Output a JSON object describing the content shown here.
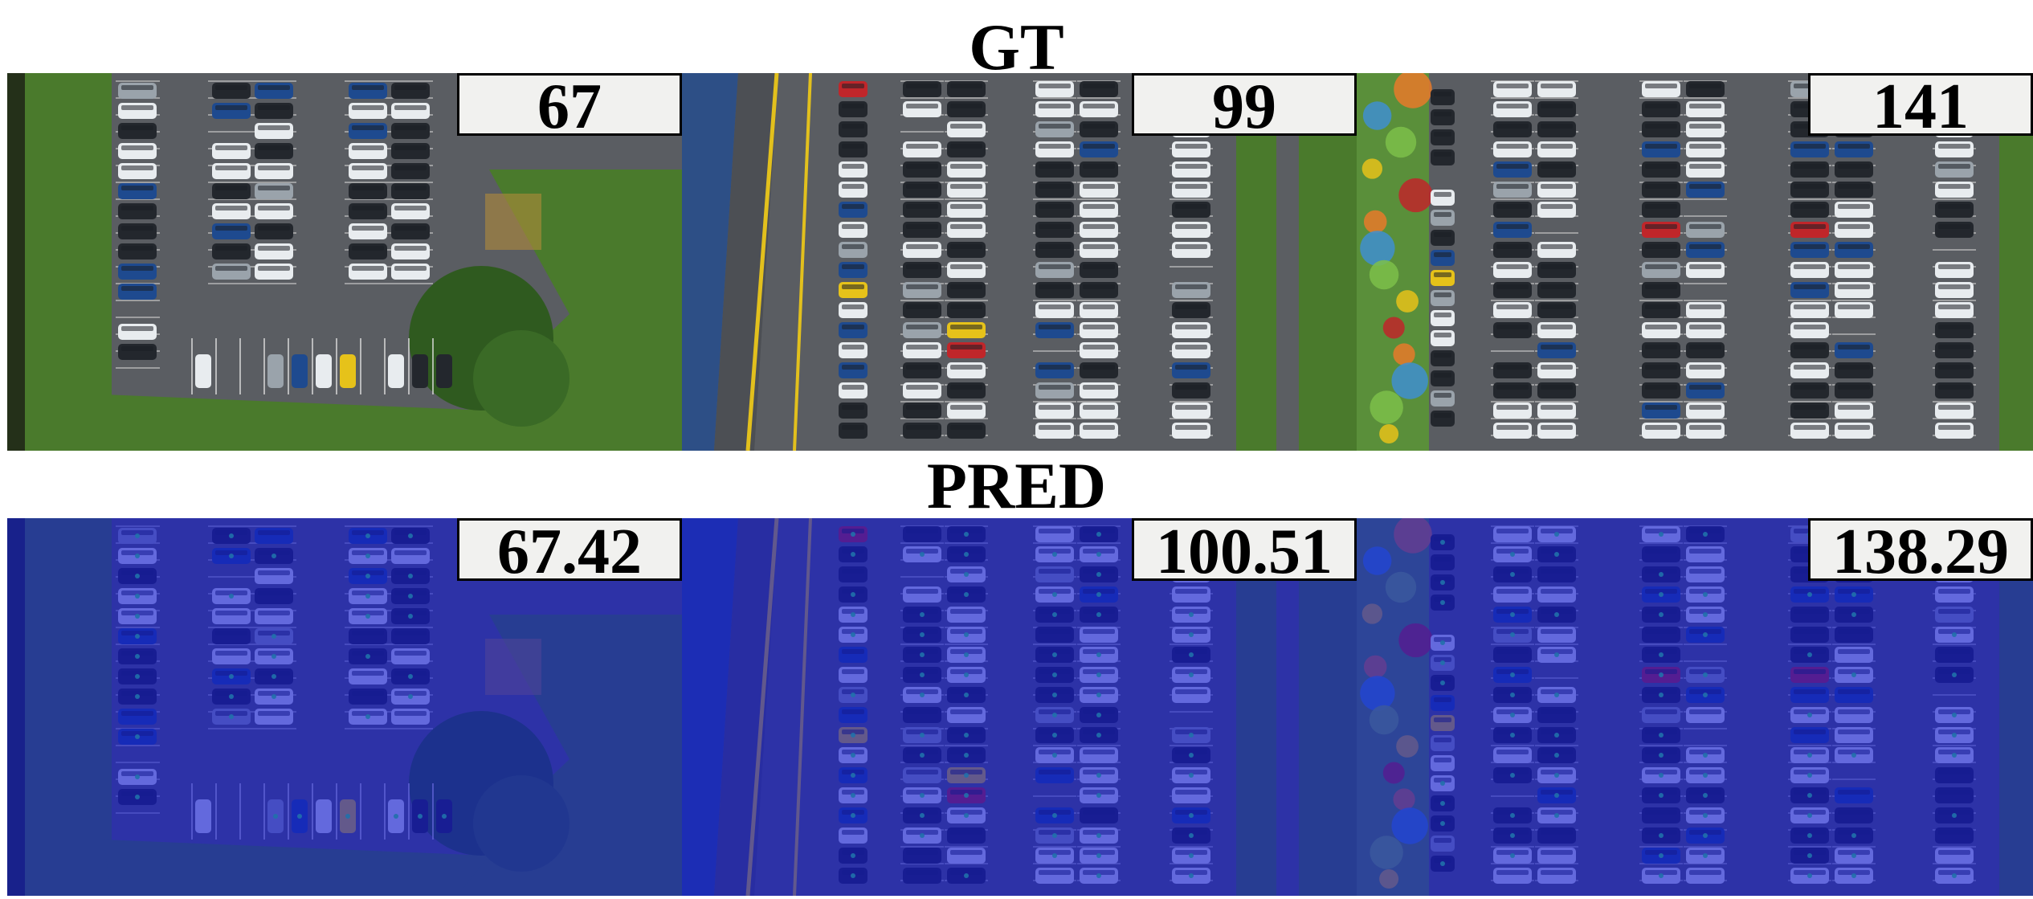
{
  "figure": {
    "gt_title": "GT",
    "pred_title": "PRED",
    "panels": [
      {
        "gt_count": "67",
        "pred_count": "67.42"
      },
      {
        "gt_count": "99",
        "pred_count": "100.51"
      },
      {
        "gt_count": "141",
        "pred_count": "138.29"
      }
    ]
  },
  "colors": {
    "asphalt": "#5a5d62",
    "grass": "#4a7a2c",
    "density_overlay": "#1219d2",
    "car_white": "#e8ecef",
    "car_dark": "#23272d",
    "car_red": "#c0262a",
    "car_blue": "#1e4a8f",
    "car_yellow": "#e6c21a"
  }
}
